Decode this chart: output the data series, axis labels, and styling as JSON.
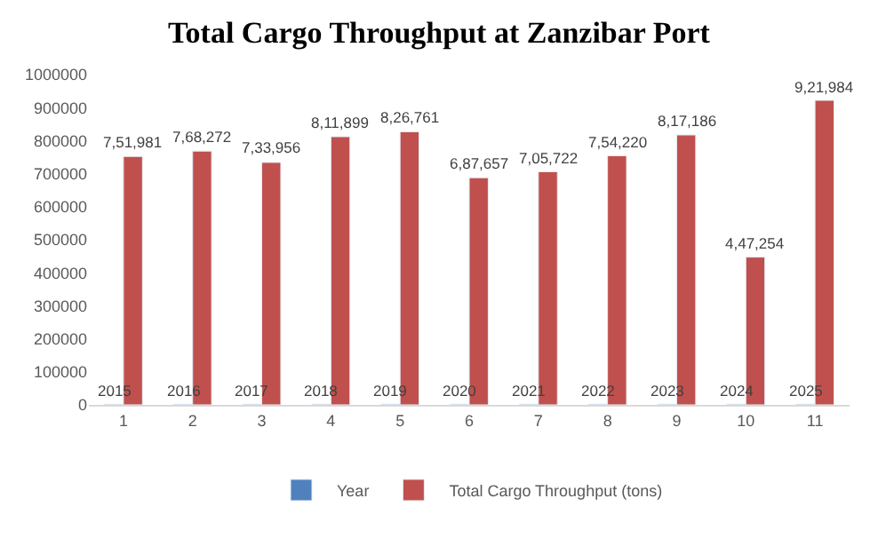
{
  "chart_data": {
    "type": "bar",
    "title": "Total Cargo Throughput at Zanzibar Port",
    "categories": [
      "1",
      "2",
      "3",
      "4",
      "5",
      "6",
      "7",
      "8",
      "9",
      "10",
      "11"
    ],
    "series": [
      {
        "name": "Year",
        "color": "#4f81bd",
        "values": [
          2015,
          2016,
          2017,
          2018,
          2019,
          2020,
          2021,
          2022,
          2023,
          2024,
          2025
        ],
        "value_labels": [
          "2015",
          "2016",
          "2017",
          "2018",
          "2019",
          "2020",
          "2021",
          "2022",
          "2023",
          "2024",
          "2025"
        ]
      },
      {
        "name": "Total Cargo Throughput (tons)",
        "color": "#c0504d",
        "values": [
          751981,
          768272,
          733956,
          811899,
          826761,
          687657,
          705722,
          754220,
          817186,
          447254,
          921984
        ],
        "value_labels": [
          "7,51,981",
          "7,68,272",
          "7,33,956",
          "8,11,899",
          "8,26,761",
          "6,87,657",
          "7,05,722",
          "7,54,220",
          "8,17,186",
          "4,47,254",
          "9,21,984"
        ]
      }
    ],
    "ylim": [
      0,
      1000000
    ],
    "yticks": [
      0,
      100000,
      200000,
      300000,
      400000,
      500000,
      600000,
      700000,
      800000,
      900000,
      1000000
    ],
    "grid": false,
    "legend": "bottom"
  }
}
